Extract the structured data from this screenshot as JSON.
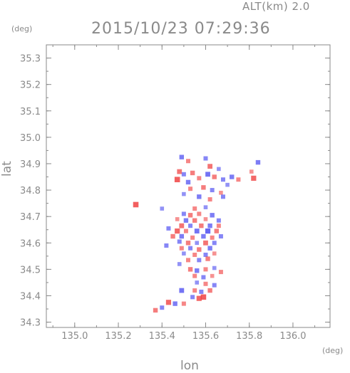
{
  "header": {
    "altitude_label": "ALT(km) 2.0",
    "datetime": "2015/10/23 07:29:36"
  },
  "chart_data": {
    "type": "heatmap",
    "title": "2015/10/23 07:29:36",
    "xlabel": "lon",
    "ylabel": "lat",
    "xunit": "(deg)",
    "yunit": "(deg)",
    "xlim": [
      134.87,
      136.17
    ],
    "ylim": [
      34.28,
      35.35
    ],
    "x_ticks": [
      "135.0",
      "135.2",
      "135.4",
      "135.6",
      "135.8",
      "136.0"
    ],
    "x_tick_values": [
      135.0,
      135.2,
      135.4,
      135.6,
      135.8,
      136.0
    ],
    "y_ticks": [
      "34.3",
      "34.4",
      "34.5",
      "34.6",
      "34.7",
      "34.8",
      "34.9",
      "35.0",
      "35.1",
      "35.2",
      "35.3"
    ],
    "y_tick_values": [
      34.3,
      34.4,
      34.5,
      34.6,
      34.7,
      34.8,
      34.9,
      35.0,
      35.1,
      35.2,
      35.3
    ],
    "grid": false,
    "colors": {
      "positive": "#f04040",
      "negative": "#4040f0",
      "axis": "#8a8a8a"
    },
    "points": [
      {
        "x": 135.49,
        "y": 34.925,
        "v": -0.6
      },
      {
        "x": 135.52,
        "y": 34.91,
        "v": 0.5
      },
      {
        "x": 135.6,
        "y": 34.92,
        "v": -0.5
      },
      {
        "x": 135.62,
        "y": 34.89,
        "v": 0.7
      },
      {
        "x": 135.66,
        "y": 34.88,
        "v": -0.4
      },
      {
        "x": 135.84,
        "y": 34.905,
        "v": -0.6
      },
      {
        "x": 135.81,
        "y": 34.87,
        "v": 0.4
      },
      {
        "x": 135.82,
        "y": 34.845,
        "v": 0.8
      },
      {
        "x": 135.48,
        "y": 34.87,
        "v": 0.7
      },
      {
        "x": 135.5,
        "y": 34.86,
        "v": -0.5
      },
      {
        "x": 135.54,
        "y": 34.865,
        "v": 0.6
      },
      {
        "x": 135.47,
        "y": 34.84,
        "v": 0.9
      },
      {
        "x": 135.52,
        "y": 34.83,
        "v": -0.6
      },
      {
        "x": 135.57,
        "y": 34.845,
        "v": 0.5
      },
      {
        "x": 135.61,
        "y": 34.86,
        "v": -0.7
      },
      {
        "x": 135.64,
        "y": 34.85,
        "v": 0.6
      },
      {
        "x": 135.68,
        "y": 34.84,
        "v": -0.5
      },
      {
        "x": 135.72,
        "y": 34.85,
        "v": -0.6
      },
      {
        "x": 135.75,
        "y": 34.84,
        "v": 0.5
      },
      {
        "x": 135.7,
        "y": 34.82,
        "v": -0.4
      },
      {
        "x": 135.53,
        "y": 34.805,
        "v": 0.5
      },
      {
        "x": 135.59,
        "y": 34.81,
        "v": 0.6
      },
      {
        "x": 135.63,
        "y": 34.8,
        "v": -0.5
      },
      {
        "x": 135.67,
        "y": 34.79,
        "v": 0.4
      },
      {
        "x": 135.5,
        "y": 34.785,
        "v": -0.4
      },
      {
        "x": 135.57,
        "y": 34.775,
        "v": -0.6
      },
      {
        "x": 135.62,
        "y": 34.765,
        "v": 0.5
      },
      {
        "x": 135.68,
        "y": 34.775,
        "v": -0.5
      },
      {
        "x": 135.28,
        "y": 34.745,
        "v": 0.9
      },
      {
        "x": 135.4,
        "y": 34.73,
        "v": -0.4
      },
      {
        "x": 135.55,
        "y": 34.73,
        "v": 0.5
      },
      {
        "x": 135.6,
        "y": 34.735,
        "v": -0.4
      },
      {
        "x": 135.5,
        "y": 34.71,
        "v": -0.5
      },
      {
        "x": 135.53,
        "y": 34.705,
        "v": 0.6
      },
      {
        "x": 135.57,
        "y": 34.71,
        "v": 0.5
      },
      {
        "x": 135.63,
        "y": 34.705,
        "v": -0.6
      },
      {
        "x": 135.47,
        "y": 34.69,
        "v": 0.4
      },
      {
        "x": 135.51,
        "y": 34.685,
        "v": -0.6
      },
      {
        "x": 135.55,
        "y": 34.685,
        "v": 0.6
      },
      {
        "x": 135.6,
        "y": 34.69,
        "v": 0.4
      },
      {
        "x": 135.66,
        "y": 34.685,
        "v": -0.5
      },
      {
        "x": 135.49,
        "y": 34.665,
        "v": 0.7
      },
      {
        "x": 135.53,
        "y": 34.665,
        "v": -0.5
      },
      {
        "x": 135.58,
        "y": 34.665,
        "v": 0.6
      },
      {
        "x": 135.62,
        "y": 34.665,
        "v": -0.6
      },
      {
        "x": 135.66,
        "y": 34.665,
        "v": 0.5
      },
      {
        "x": 135.43,
        "y": 34.655,
        "v": -0.5
      },
      {
        "x": 135.47,
        "y": 34.645,
        "v": 0.8
      },
      {
        "x": 135.51,
        "y": 34.645,
        "v": 0.5
      },
      {
        "x": 135.56,
        "y": 34.645,
        "v": -0.7
      },
      {
        "x": 135.61,
        "y": 34.645,
        "v": -0.8
      },
      {
        "x": 135.65,
        "y": 34.645,
        "v": 0.6
      },
      {
        "x": 135.45,
        "y": 34.625,
        "v": 0.6
      },
      {
        "x": 135.49,
        "y": 34.625,
        "v": -0.6
      },
      {
        "x": 135.54,
        "y": 34.62,
        "v": 0.5
      },
      {
        "x": 135.59,
        "y": 34.625,
        "v": -0.6
      },
      {
        "x": 135.63,
        "y": 34.62,
        "v": 0.5
      },
      {
        "x": 135.67,
        "y": 34.625,
        "v": -0.5
      },
      {
        "x": 135.48,
        "y": 34.605,
        "v": -0.5
      },
      {
        "x": 135.52,
        "y": 34.6,
        "v": 0.6
      },
      {
        "x": 135.56,
        "y": 34.6,
        "v": -0.4
      },
      {
        "x": 135.6,
        "y": 34.6,
        "v": 0.7
      },
      {
        "x": 135.64,
        "y": 34.6,
        "v": -0.5
      },
      {
        "x": 135.42,
        "y": 34.59,
        "v": -0.5
      },
      {
        "x": 135.49,
        "y": 34.58,
        "v": 0.5
      },
      {
        "x": 135.53,
        "y": 34.58,
        "v": -0.5
      },
      {
        "x": 135.57,
        "y": 34.575,
        "v": 0.6
      },
      {
        "x": 135.62,
        "y": 34.58,
        "v": -0.6
      },
      {
        "x": 135.5,
        "y": 34.56,
        "v": -0.4
      },
      {
        "x": 135.55,
        "y": 34.555,
        "v": 0.5
      },
      {
        "x": 135.6,
        "y": 34.555,
        "v": -0.5
      },
      {
        "x": 135.64,
        "y": 34.56,
        "v": 0.4
      },
      {
        "x": 135.52,
        "y": 34.535,
        "v": 0.5
      },
      {
        "x": 135.57,
        "y": 34.535,
        "v": -0.5
      },
      {
        "x": 135.61,
        "y": 34.54,
        "v": 0.6
      },
      {
        "x": 135.48,
        "y": 34.52,
        "v": -0.4
      },
      {
        "x": 135.53,
        "y": 34.5,
        "v": 0.6
      },
      {
        "x": 135.56,
        "y": 34.495,
        "v": -0.6
      },
      {
        "x": 135.6,
        "y": 34.5,
        "v": 0.5
      },
      {
        "x": 135.64,
        "y": 34.505,
        "v": -0.4
      },
      {
        "x": 135.67,
        "y": 34.49,
        "v": 0.5
      },
      {
        "x": 135.55,
        "y": 34.475,
        "v": 0.5
      },
      {
        "x": 135.59,
        "y": 34.47,
        "v": -0.5
      },
      {
        "x": 135.63,
        "y": 34.475,
        "v": 0.4
      },
      {
        "x": 135.56,
        "y": 34.45,
        "v": -0.4
      },
      {
        "x": 135.6,
        "y": 34.445,
        "v": 0.5
      },
      {
        "x": 135.64,
        "y": 34.44,
        "v": -0.5
      },
      {
        "x": 135.49,
        "y": 34.42,
        "v": -0.7
      },
      {
        "x": 135.55,
        "y": 34.42,
        "v": 0.5
      },
      {
        "x": 135.58,
        "y": 34.415,
        "v": -0.5
      },
      {
        "x": 135.62,
        "y": 34.42,
        "v": 0.6
      },
      {
        "x": 135.59,
        "y": 34.395,
        "v": 0.9
      },
      {
        "x": 135.57,
        "y": 34.39,
        "v": 0.8
      },
      {
        "x": 135.54,
        "y": 34.395,
        "v": -0.5
      },
      {
        "x": 135.43,
        "y": 34.375,
        "v": 0.8
      },
      {
        "x": 135.46,
        "y": 34.37,
        "v": -0.6
      },
      {
        "x": 135.5,
        "y": 34.37,
        "v": 0.5
      },
      {
        "x": 135.4,
        "y": 34.355,
        "v": -0.5
      },
      {
        "x": 135.37,
        "y": 34.345,
        "v": 0.6
      }
    ]
  }
}
